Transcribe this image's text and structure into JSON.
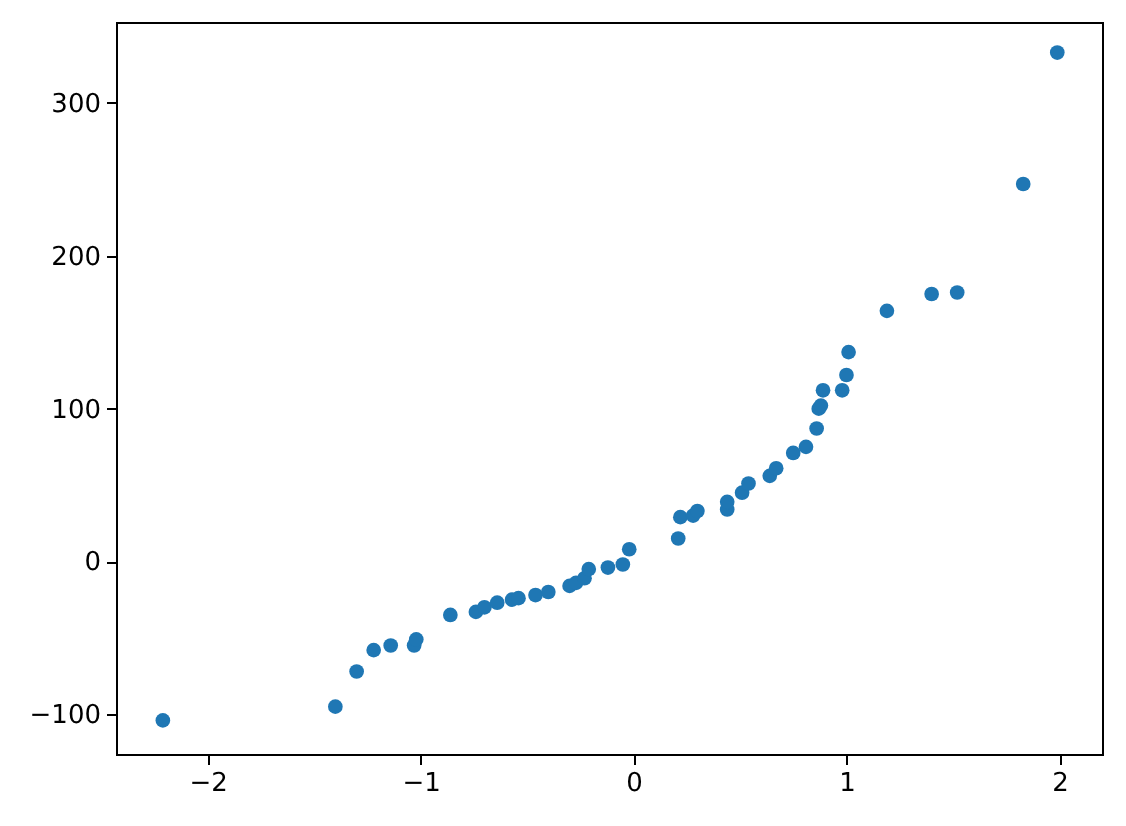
{
  "chart_data": {
    "type": "scatter",
    "x": [
      -2.21,
      -1.4,
      -1.3,
      -1.22,
      -1.14,
      -1.03,
      -1.02,
      -0.86,
      -0.74,
      -0.7,
      -0.64,
      -0.57,
      -0.54,
      -0.46,
      -0.4,
      -0.3,
      -0.27,
      -0.23,
      -0.21,
      -0.12,
      -0.05,
      -0.02,
      0.21,
      0.22,
      0.28,
      0.3,
      0.44,
      0.44,
      0.51,
      0.54,
      0.64,
      0.67,
      0.75,
      0.81,
      0.86,
      0.87,
      0.88,
      0.89,
      0.98,
      1.0,
      1.01,
      1.19,
      1.4,
      1.52,
      1.83,
      1.99
    ],
    "series": [
      {
        "color": "#1f77b4",
        "values": [
          -104,
          -95,
          -72,
          -58,
          -55,
          -55,
          -51,
          -35,
          -33,
          -30,
          -27,
          -25,
          -24,
          -22,
          -20,
          -16,
          -14,
          -11,
          -5,
          -4,
          -2,
          8,
          15,
          29,
          30,
          33,
          34,
          39,
          45,
          51,
          56,
          61,
          71,
          75,
          87,
          100,
          102,
          112,
          112,
          122,
          137,
          164,
          175,
          176,
          247,
          333
        ]
      }
    ],
    "xlim": [
      -2.43,
      2.2
    ],
    "ylim": [
      -126,
      353
    ],
    "xticks": [
      {
        "value": -2,
        "label": "−2"
      },
      {
        "value": -1,
        "label": "−1"
      },
      0,
      1,
      2
    ],
    "yticks": [
      {
        "value": -100,
        "label": "−100"
      },
      0,
      100,
      200,
      300
    ],
    "grid": false,
    "marker": "circle"
  }
}
